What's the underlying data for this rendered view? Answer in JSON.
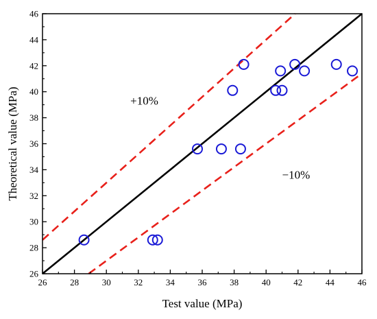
{
  "chart_data": {
    "type": "scatter",
    "xlabel": "Test value (MPa)",
    "ylabel": "Theoretical value (MPa)",
    "xlim": [
      26,
      46
    ],
    "ylim": [
      26,
      46
    ],
    "xticks": [
      26,
      28,
      30,
      32,
      34,
      36,
      38,
      40,
      42,
      44,
      46
    ],
    "yticks": [
      26,
      28,
      30,
      32,
      34,
      36,
      38,
      40,
      42,
      44,
      46
    ],
    "grid": false,
    "points": [
      {
        "x": 28.6,
        "y": 28.6
      },
      {
        "x": 32.9,
        "y": 28.6
      },
      {
        "x": 33.2,
        "y": 28.6
      },
      {
        "x": 35.7,
        "y": 35.6
      },
      {
        "x": 37.2,
        "y": 35.6
      },
      {
        "x": 38.4,
        "y": 35.6
      },
      {
        "x": 37.9,
        "y": 40.1
      },
      {
        "x": 38.6,
        "y": 42.1
      },
      {
        "x": 40.6,
        "y": 40.1
      },
      {
        "x": 41.0,
        "y": 40.1
      },
      {
        "x": 40.9,
        "y": 41.6
      },
      {
        "x": 41.8,
        "y": 42.1
      },
      {
        "x": 42.4,
        "y": 41.6
      },
      {
        "x": 44.4,
        "y": 42.1
      },
      {
        "x": 45.4,
        "y": 41.6
      }
    ],
    "lines": [
      {
        "label": "",
        "factor": 1.0,
        "style": "solid",
        "color": "#000000"
      },
      {
        "label": "+10%",
        "factor": 1.1,
        "style": "dashed",
        "color": "#e8201a"
      },
      {
        "label": "−10%",
        "factor": 0.9,
        "style": "dashed",
        "color": "#e8201a"
      }
    ],
    "marker_color": "#1a1ad6",
    "annotations": {
      "plus": {
        "text": "+10%",
        "x": 31.5,
        "y": 39.0
      },
      "minus": {
        "text": "−10%",
        "x": 41.0,
        "y": 33.3
      }
    }
  }
}
